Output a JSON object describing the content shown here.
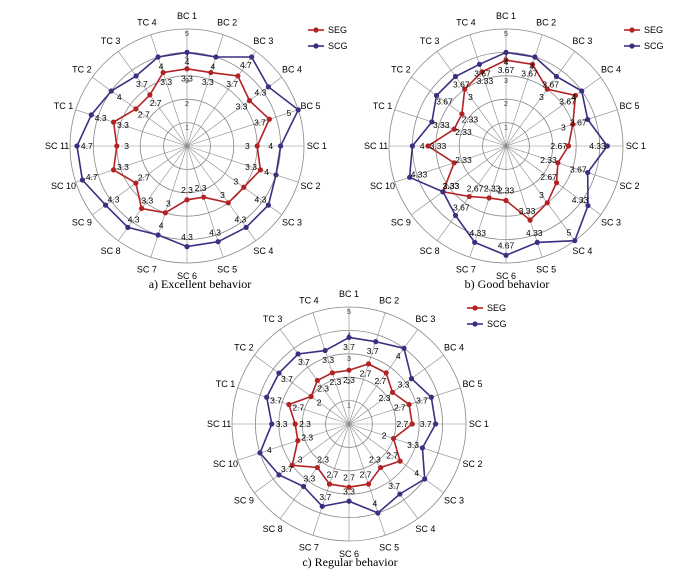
{
  "figure": {
    "axes": [
      "BC 1",
      "BC 2",
      "BC 3",
      "BC 4",
      "BC 5",
      "SC 1",
      "SC 2",
      "SC 3",
      "SC 4",
      "SC 5",
      "SC 6",
      "SC 7",
      "SC 8",
      "SC 9",
      "SC 10",
      "SC 11",
      "TC 1",
      "TC 2",
      "TC 3",
      "TC 4"
    ],
    "legend": [
      "SEG",
      "SCG"
    ],
    "colors": {
      "SEG": "#b22222",
      "SCG": "#3c2e80",
      "grid": "#888888"
    }
  },
  "chart_data": [
    {
      "type": "radar",
      "caption": "a) Excellent behavior",
      "rlim": [
        0,
        5
      ],
      "ticks": [
        "1",
        "2",
        "3",
        "4",
        "5"
      ],
      "grid": true,
      "legend_position": "top-right",
      "categories": [
        "BC 1",
        "BC 2",
        "BC 3",
        "BC 4",
        "BC 5",
        "SC 1",
        "SC 2",
        "SC 3",
        "SC 4",
        "SC 5",
        "SC 6",
        "SC 7",
        "SC 8",
        "SC 9",
        "SC 10",
        "SC 11",
        "TC 1",
        "TC 2",
        "TC 3",
        "TC 4"
      ],
      "series": [
        {
          "name": "SEG",
          "values": [
            3.3,
            3.3,
            3.7,
            3.3,
            3.7,
            3,
            3.3,
            3,
            3,
            2.3,
            2.3,
            3,
            3.3,
            2.7,
            3.3,
            3,
            3.3,
            2.7,
            2.7,
            3.3
          ],
          "labels": [
            "3.3",
            "3.3",
            "3.7",
            "3.3",
            "3.7",
            "3",
            "3.3",
            "3",
            "3",
            "2.3",
            "2.3",
            "3",
            "3.3",
            "2.7",
            "3.3",
            "3",
            "3.3",
            "2.7",
            "2.7",
            "3.3"
          ]
        },
        {
          "name": "SCG",
          "values": [
            4,
            4,
            4.7,
            4.3,
            5,
            4,
            4,
            4.3,
            4.3,
            4.3,
            4.3,
            4,
            4.3,
            4.3,
            4.7,
            4.7,
            4.3,
            4,
            3.7,
            4
          ],
          "labels": [
            "4",
            "4",
            "4.7",
            "4.3",
            "5",
            "4",
            "4",
            "4.3",
            "4.3",
            "4.3",
            "4.3",
            "4",
            "4.3",
            "4.3",
            "4.7",
            "4.7",
            "4.3",
            "4",
            "3.7",
            "4"
          ]
        }
      ]
    },
    {
      "type": "radar",
      "caption": "b) Good behavior",
      "rlim": [
        0,
        5
      ],
      "ticks": [
        "1",
        "2",
        "3",
        "4",
        "5"
      ],
      "grid": true,
      "legend_position": "top-right",
      "categories": [
        "BC 1",
        "BC 2",
        "BC 3",
        "BC 4",
        "BC 5",
        "SC 1",
        "SC 2",
        "SC 3",
        "SC 4",
        "SC 5",
        "SC 6",
        "SC 7",
        "SC 8",
        "SC 9",
        "SC 10",
        "SC 11",
        "TC 1",
        "TC 2",
        "TC 3",
        "TC 4"
      ],
      "series": [
        {
          "name": "SEG",
          "values": [
            3.67,
            3.67,
            3,
            3.67,
            3,
            2.67,
            2.33,
            2.67,
            3,
            3.33,
            2.33,
            2.33,
            2.67,
            3.33,
            2.33,
            3.33,
            2.33,
            2.33,
            3,
            3.33
          ],
          "labels": [
            "3.67",
            "3.67",
            "3",
            "3.67",
            "3",
            "2.67",
            "2.33",
            "2.67",
            "3",
            "3.33",
            "2.33",
            "2.33",
            "2.67",
            "3.33",
            "2.33",
            "3.33",
            "2.33",
            "2.33",
            "3",
            "3.33"
          ]
        },
        {
          "name": "SCG",
          "values": [
            4,
            4,
            3.67,
            4,
            3.67,
            4.33,
            3.67,
            4.33,
            5,
            4.33,
            4.67,
            4.33,
            3.67,
            3.33,
            4.33,
            4,
            3.33,
            3.67,
            3.67,
            3.67
          ],
          "labels": [
            "4",
            "4",
            "3.67",
            "4",
            "3.67",
            "4.33",
            "3.67",
            "4.33",
            "5",
            "4.33",
            "4.67",
            "4.33",
            "3.67",
            "3.33",
            "4.33",
            "4",
            "3.33",
            "3.67",
            "3.67",
            "3.67"
          ]
        }
      ]
    },
    {
      "type": "radar",
      "caption": "c) Regular behavior",
      "rlim": [
        0,
        5
      ],
      "ticks": [
        "1",
        "2",
        "3",
        "4",
        "5"
      ],
      "grid": true,
      "legend_position": "top-right",
      "categories": [
        "BC 1",
        "BC 2",
        "BC 3",
        "BC 4",
        "BC 5",
        "SC 1",
        "SC 2",
        "SC 3",
        "SC 4",
        "SC 5",
        "SC 6",
        "SC 7",
        "SC 8",
        "SC 9",
        "SC 10",
        "SC 11",
        "TC 1",
        "TC 2",
        "TC 3",
        "TC 4"
      ],
      "series": [
        {
          "name": "SEG",
          "values": [
            2.3,
            2.7,
            2.7,
            2.3,
            2.7,
            2.7,
            2,
            2.7,
            2.3,
            2.7,
            2.7,
            2.7,
            2.3,
            3,
            2.3,
            2.3,
            2.7,
            2,
            2.3,
            2.3
          ],
          "labels": [
            "2.3",
            "2.7",
            "2.7",
            "2.3",
            "2.7",
            "2.7",
            "2",
            "2.7",
            "2.3",
            "2.7",
            "2.7",
            "2.7",
            "2.3",
            "3",
            "2.3",
            "2.3",
            "2.7",
            "2",
            "2.3",
            "2.3"
          ]
        },
        {
          "name": "SCG",
          "values": [
            3.7,
            3.7,
            4,
            3.3,
            3.7,
            3.7,
            3.3,
            4,
            3.7,
            4,
            3.3,
            3.7,
            3.3,
            3.7,
            4,
            3.3,
            3.7,
            3.7,
            3.7,
            3.3
          ],
          "labels": [
            "3.7",
            "3.7",
            "4",
            "3.3",
            "3.7",
            "3.7",
            "3.3",
            "4",
            "3.7",
            "4",
            "3.3",
            "3.7",
            "3.3",
            "3.7",
            "4",
            "3.3",
            "3.7",
            "3.7",
            "3.7",
            "3.3"
          ]
        }
      ]
    }
  ]
}
